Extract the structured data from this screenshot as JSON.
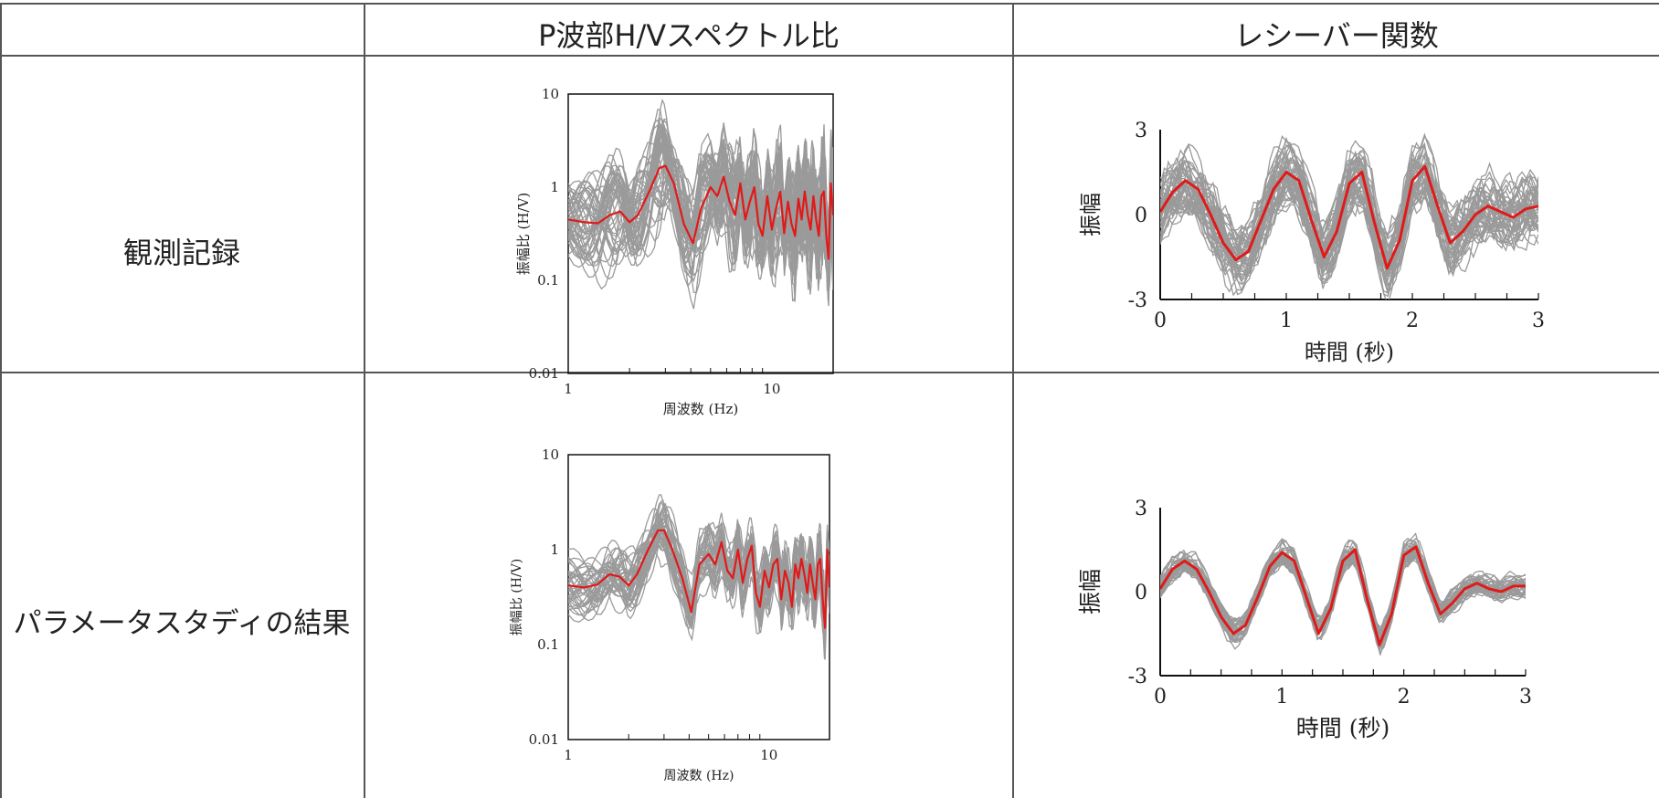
{
  "table": {
    "header": [
      "",
      "P波部H/Vスペクトル比",
      "レシーバー関数"
    ],
    "rows": [
      "観測記録",
      "パラメータスタディの結果"
    ]
  },
  "colors": {
    "gray_traces": "#9a9a9a",
    "red_trace": "#e01a1a",
    "axis": "#111111"
  },
  "chart_data": [
    {
      "id": "hv-observed",
      "type": "line",
      "xscale": "log",
      "yscale": "log",
      "xlim": [
        1,
        20
      ],
      "ylim": [
        0.01,
        10
      ],
      "xticks": [
        "1",
        "10"
      ],
      "yticks": [
        "0.01",
        "0.1",
        "1",
        "10"
      ],
      "xlabel": "周波数 (Hz)",
      "ylabel": "振幅比 (H/V)",
      "gray_count": 45,
      "gray_spread": 1.0,
      "red": {
        "x": [
          1,
          1.2,
          1.4,
          1.6,
          1.8,
          2.0,
          2.2,
          2.5,
          2.8,
          3.0,
          3.3,
          3.7,
          4.1,
          4.5,
          5.0,
          5.4,
          5.8,
          6.2,
          6.6,
          7.0,
          7.4,
          7.8,
          8.2,
          8.6,
          9.0,
          9.5,
          10,
          10.5,
          11,
          11.5,
          12,
          12.5,
          13,
          13.5,
          14,
          14.5,
          15,
          15.5,
          16,
          16.5,
          17,
          17.5,
          18,
          18.5,
          19,
          19.5,
          20
        ],
        "y": [
          0.45,
          0.42,
          0.41,
          0.5,
          0.55,
          0.42,
          0.5,
          0.9,
          1.6,
          1.7,
          1.1,
          0.4,
          0.25,
          0.6,
          1.0,
          0.8,
          1.3,
          0.7,
          0.5,
          1.1,
          0.45,
          0.7,
          1.0,
          0.4,
          0.3,
          0.8,
          0.35,
          0.6,
          0.9,
          0.32,
          0.7,
          0.4,
          0.3,
          0.75,
          0.45,
          0.9,
          0.5,
          0.35,
          0.8,
          0.45,
          0.3,
          0.8,
          0.9,
          0.3,
          0.17,
          1.1,
          0.5
        ]
      }
    },
    {
      "id": "rf-observed",
      "type": "line",
      "xlim": [
        0,
        3
      ],
      "ylim": [
        -3,
        3
      ],
      "xticks": [
        "0",
        "1",
        "2",
        "3"
      ],
      "yticks": [
        "-3",
        "0",
        "3"
      ],
      "xlabel": "時間 (秒)",
      "ylabel": "振幅",
      "gray_count": 45,
      "gray_spread": 1.0,
      "red": {
        "x": [
          0,
          0.1,
          0.2,
          0.3,
          0.4,
          0.5,
          0.6,
          0.7,
          0.8,
          0.9,
          1.0,
          1.1,
          1.2,
          1.3,
          1.4,
          1.5,
          1.6,
          1.7,
          1.8,
          1.9,
          2.0,
          2.1,
          2.2,
          2.3,
          2.4,
          2.5,
          2.6,
          2.7,
          2.8,
          2.9,
          3.0
        ],
        "y": [
          0.1,
          0.8,
          1.2,
          0.9,
          0.0,
          -1.0,
          -1.6,
          -1.3,
          -0.2,
          0.9,
          1.5,
          1.2,
          -0.2,
          -1.5,
          -0.6,
          1.1,
          1.5,
          -0.3,
          -1.9,
          -0.9,
          1.2,
          1.7,
          0.3,
          -1.0,
          -0.6,
          0.0,
          0.3,
          0.1,
          -0.1,
          0.2,
          0.3
        ]
      }
    },
    {
      "id": "hv-parameter",
      "type": "line",
      "xscale": "log",
      "yscale": "log",
      "xlim": [
        1,
        20
      ],
      "ylim": [
        0.01,
        10
      ],
      "xticks": [
        "1",
        "10"
      ],
      "yticks": [
        "0.01",
        "0.1",
        "1",
        "10"
      ],
      "xlabel": "周波数 (Hz)",
      "ylabel": "振幅比 (H/V)",
      "gray_count": 40,
      "gray_spread": 0.55,
      "red": {
        "x": [
          1,
          1.2,
          1.4,
          1.6,
          1.8,
          2.0,
          2.2,
          2.5,
          2.8,
          3.0,
          3.3,
          3.7,
          4.1,
          4.5,
          5.0,
          5.4,
          5.8,
          6.2,
          6.6,
          7.0,
          7.4,
          7.8,
          8.2,
          8.6,
          9.0,
          9.5,
          10,
          10.5,
          11,
          11.5,
          12,
          12.5,
          13,
          13.5,
          14,
          14.5,
          15,
          15.5,
          16,
          16.5,
          17,
          17.5,
          18,
          18.5,
          19,
          19.5,
          20
        ],
        "y": [
          0.42,
          0.4,
          0.43,
          0.55,
          0.52,
          0.42,
          0.55,
          1.0,
          1.6,
          1.6,
          1.0,
          0.5,
          0.22,
          0.7,
          0.9,
          0.7,
          1.2,
          0.6,
          0.5,
          1.0,
          0.45,
          0.8,
          1.1,
          0.35,
          0.25,
          0.6,
          0.4,
          0.7,
          0.8,
          0.3,
          0.6,
          0.45,
          0.25,
          0.7,
          0.5,
          0.8,
          0.55,
          0.35,
          0.7,
          0.45,
          0.3,
          0.7,
          0.8,
          0.3,
          0.15,
          1.0,
          0.4
        ]
      }
    },
    {
      "id": "rf-parameter",
      "type": "line",
      "xlim": [
        0,
        3
      ],
      "ylim": [
        -3,
        3
      ],
      "xticks": [
        "0",
        "1",
        "2",
        "3"
      ],
      "yticks": [
        "-3",
        "0",
        "3"
      ],
      "xlabel": "時間 (秒)",
      "ylabel": "振幅",
      "gray_count": 40,
      "gray_spread": 0.35,
      "red": {
        "x": [
          0,
          0.1,
          0.2,
          0.3,
          0.4,
          0.5,
          0.6,
          0.7,
          0.8,
          0.9,
          1.0,
          1.1,
          1.2,
          1.3,
          1.4,
          1.5,
          1.6,
          1.7,
          1.8,
          1.9,
          2.0,
          2.1,
          2.2,
          2.3,
          2.4,
          2.5,
          2.6,
          2.7,
          2.8,
          2.9,
          3.0
        ],
        "y": [
          0.1,
          0.8,
          1.1,
          0.8,
          0.0,
          -0.9,
          -1.5,
          -1.2,
          -0.2,
          0.9,
          1.4,
          1.1,
          -0.2,
          -1.5,
          -0.6,
          1.1,
          1.5,
          -0.3,
          -1.9,
          -0.8,
          1.3,
          1.6,
          0.3,
          -0.8,
          -0.4,
          0.1,
          0.3,
          0.1,
          0.0,
          0.2,
          0.2
        ]
      }
    }
  ]
}
